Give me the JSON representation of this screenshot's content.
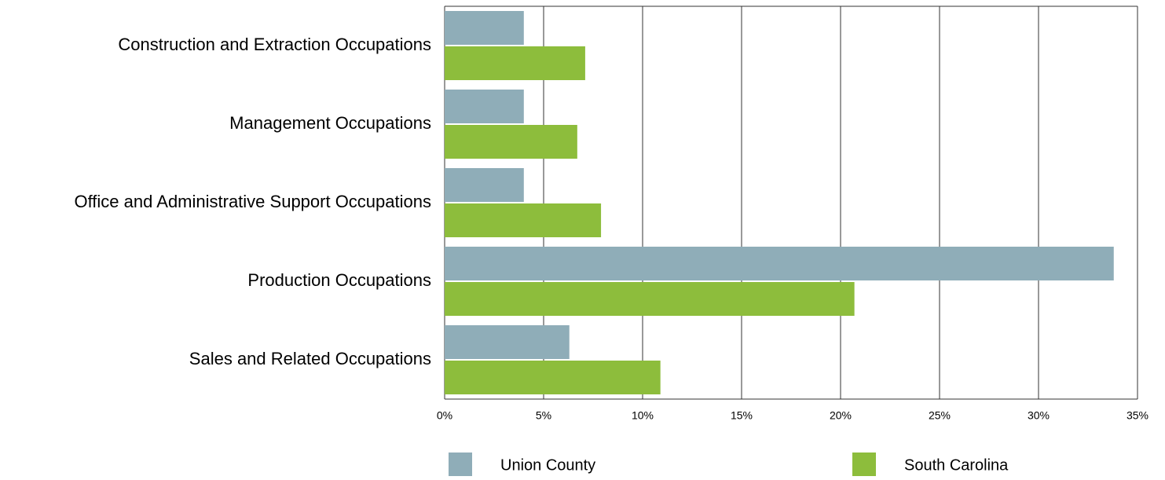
{
  "chart_data": {
    "type": "hbar",
    "categories": [
      "Construction and Extraction Occupations",
      "Management Occupations",
      "Office and Administrative Support Occupations",
      "Production Occupations",
      "Sales and Related Occupations"
    ],
    "series": [
      {
        "name": "Union County",
        "color": "#8fadb8",
        "values": [
          4.0,
          4.0,
          4.0,
          33.8,
          6.3
        ]
      },
      {
        "name": "South Carolina",
        "color": "#8dbd3c",
        "values": [
          7.1,
          6.7,
          7.9,
          20.7,
          10.9
        ]
      }
    ],
    "xlim": [
      0,
      35
    ],
    "xticks": [
      {
        "value": 0,
        "label": "0%"
      },
      {
        "value": 5,
        "label": "5%"
      },
      {
        "value": 10,
        "label": "10%"
      },
      {
        "value": 15,
        "label": "15%"
      },
      {
        "value": 20,
        "label": "20%"
      },
      {
        "value": 25,
        "label": "25%"
      },
      {
        "value": 30,
        "label": "30%"
      },
      {
        "value": 35,
        "label": "35%"
      }
    ],
    "grid": true,
    "legend": "bottom"
  }
}
